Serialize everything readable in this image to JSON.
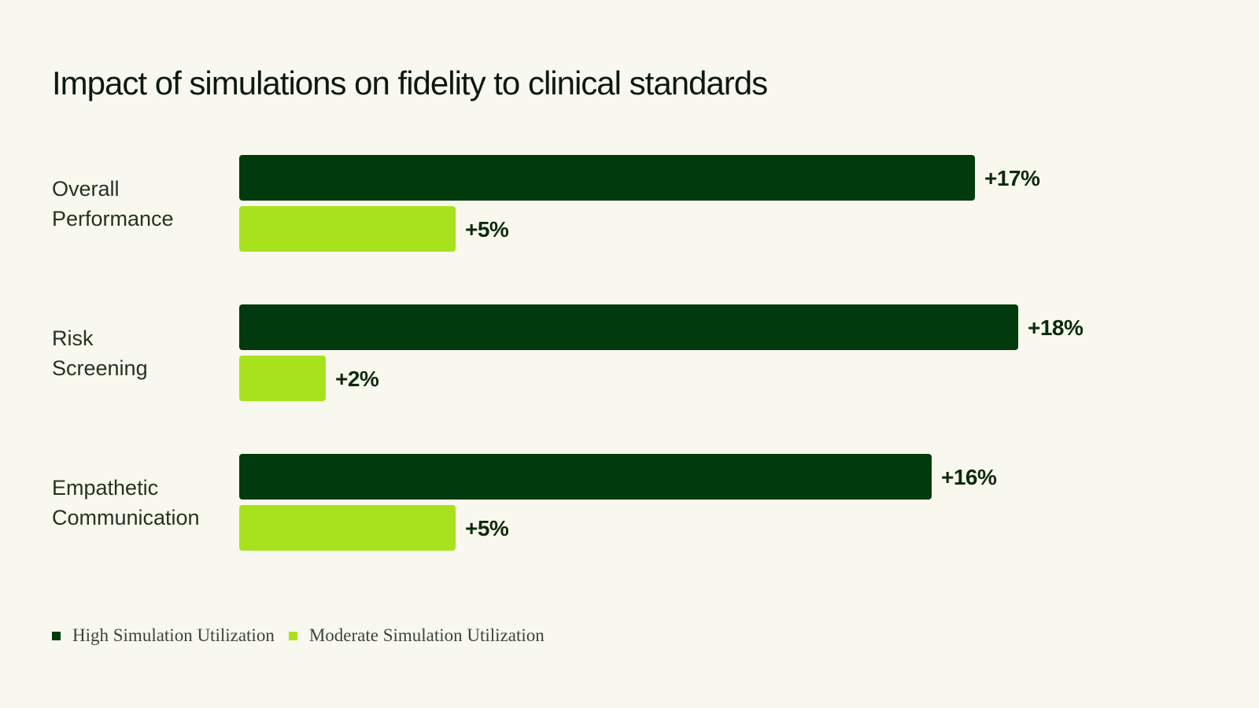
{
  "chart_data": {
    "type": "bar",
    "orientation": "horizontal",
    "title": "Impact of simulations on fidelity to clinical standards",
    "categories": [
      [
        "Overall",
        "Performance"
      ],
      [
        "Risk",
        "Screening"
      ],
      [
        "Empathetic",
        "Communication"
      ]
    ],
    "series": [
      {
        "name": "High Simulation Utilization",
        "color": "#003a0d",
        "values": [
          17,
          18,
          16
        ],
        "labels": [
          "+17%",
          "+18%",
          "+16%"
        ]
      },
      {
        "name": "Moderate Simulation Utilization",
        "color": "#a8e21e",
        "values": [
          5,
          2,
          5
        ],
        "labels": [
          "+5%",
          "+2%",
          "+5%"
        ]
      }
    ],
    "xlim": [
      0,
      18
    ],
    "grid": false,
    "legend_position": "bottom-left"
  }
}
